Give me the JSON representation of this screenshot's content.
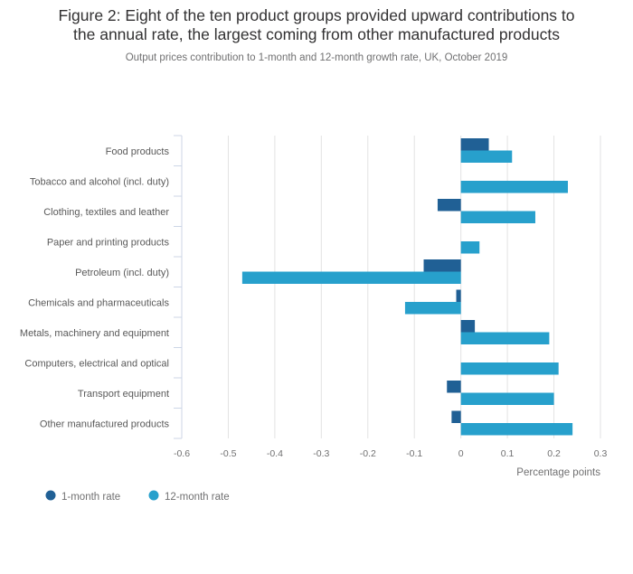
{
  "chart_data": {
    "type": "bar",
    "orientation": "horizontal",
    "title": "Figure 2: Eight of the ten product groups provided upward contributions to the annual rate, the largest coming from other manufactured products",
    "title_lines": [
      "Figure 2: Eight of the ten product groups provided upward contributions to",
      "the annual rate, the largest coming from other manufactured products"
    ],
    "subtitle": "Output prices contribution to 1-month and 12-month growth rate, UK, October 2019",
    "xlabel": "Percentage points",
    "ylabel": "",
    "xlim": [
      -0.6,
      0.3
    ],
    "xticks": [
      -0.6,
      -0.5,
      -0.4,
      -0.3,
      -0.2,
      -0.1,
      0,
      0.1,
      0.2,
      0.3
    ],
    "xtick_labels": [
      "-0.6",
      "-0.5",
      "-0.4",
      "-0.3",
      "-0.2",
      "-0.1",
      "0",
      "0.1",
      "0.2",
      "0.3"
    ],
    "grid": true,
    "legend_position": "bottom-left",
    "categories": [
      "Food products",
      "Tobacco and alcohol (incl. duty)",
      "Clothing, textiles and leather",
      "Paper and printing products",
      "Petroleum (incl. duty)",
      "Chemicals and pharmaceuticals",
      "Metals, machinery and equipment",
      "Computers, electrical and optical",
      "Transport equipment",
      "Other manufactured products"
    ],
    "series": [
      {
        "name": "1-month rate",
        "color": "#206095",
        "values": [
          0.06,
          0.0,
          -0.05,
          0.0,
          -0.08,
          -0.01,
          0.03,
          0.0,
          -0.03,
          -0.02
        ]
      },
      {
        "name": "12-month rate",
        "color": "#27a0cc",
        "values": [
          0.11,
          0.23,
          0.16,
          0.04,
          -0.47,
          -0.12,
          0.19,
          0.21,
          0.2,
          0.24
        ]
      }
    ]
  }
}
